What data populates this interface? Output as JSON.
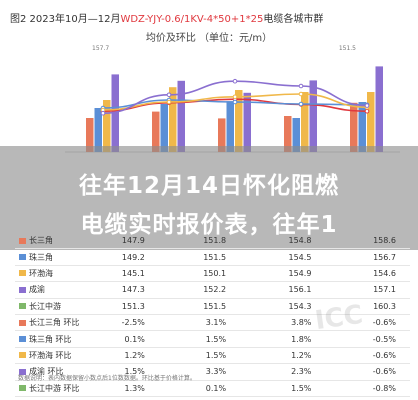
{
  "header": {
    "title_prefix": "图2 2023年10月—12月",
    "title_red": "WDZ-YJY-0.6/1KV-4*50+1*25",
    "title_suffix": "电缆各城市群",
    "subtitle": "均价及环比 （单位：元/m）"
  },
  "chart_labels": {
    "top_left": "157.7",
    "top_right": "151.5"
  },
  "chart_data": {
    "type": "bar",
    "categories": [
      "长三角",
      "珠三角",
      "环渤海",
      "成渝",
      "长江中游"
    ],
    "series": [
      {
        "name": "",
        "values": [
          147.5,
          149.1,
          147.4,
          148.0,
          151.3
        ],
        "color": "#e8795a"
      },
      {
        "name": "",
        "values": [
          150.0,
          151.0,
          151.7,
          147.5,
          151.5
        ],
        "color": "#5b8fd6"
      },
      {
        "name": "",
        "values": [
          152.0,
          155.2,
          154.5,
          154.0,
          154.0
        ],
        "color": "#f0b84a"
      },
      {
        "name": "",
        "values": [
          158.4,
          156.8,
          153.8,
          156.9,
          160.4
        ],
        "color": "#8a6fd0"
      }
    ],
    "lines": [
      {
        "values": [
          149.2,
          151.3,
          152.2,
          150.9,
          149.2
        ],
        "color": "#e0383e"
      },
      {
        "values": [
          150.0,
          152.0,
          151.5,
          151.0,
          150.8
        ],
        "color": "#5b8fd6"
      },
      {
        "values": [
          149.5,
          151.5,
          152.8,
          153.5,
          150.2
        ],
        "color": "#f0b84a"
      },
      {
        "values": [
          148.7,
          153.3,
          156.7,
          155.5,
          150.6
        ],
        "color": "#8a6fd0"
      }
    ],
    "ylim": [
      139,
      162
    ]
  },
  "banner": {
    "line1": "往年12月14日怀化阻燃",
    "line2": "电缆实时报价表，往年1"
  },
  "table": {
    "rows": [
      {
        "name": "长三角",
        "color": "#e8795a",
        "c1": "147.9",
        "c2": "151.8",
        "c3": "154.8",
        "c4": "158.6"
      },
      {
        "name": "珠三角",
        "color": "#5b8fd6",
        "c1": "149.2",
        "c2": "151.5",
        "c3": "154.5",
        "c4": "156.7"
      },
      {
        "name": "环渤海",
        "color": "#f0b84a",
        "c1": "145.1",
        "c2": "150.1",
        "c3": "154.9",
        "c4": "154.6"
      },
      {
        "name": "成渝",
        "color": "#8a6fd0",
        "c1": "147.3",
        "c2": "152.2",
        "c3": "156.1",
        "c4": "157.1"
      },
      {
        "name": "长江中游",
        "color": "#7fb86a",
        "c1": "151.3",
        "c2": "151.5",
        "c3": "154.3",
        "c4": "160.3"
      },
      {
        "name": "长江三角 环比",
        "color": "#e8795a",
        "c1": "-2.5%",
        "c2": "3.1%",
        "c3": "3.8%",
        "c4": "-0.6%"
      },
      {
        "name": "珠三角 环比",
        "color": "#5b8fd6",
        "c1": "0.1%",
        "c2": "1.5%",
        "c3": "1.8%",
        "c4": "-0.5%"
      },
      {
        "name": "环渤海 环比",
        "color": "#f0b84a",
        "c1": "1.2%",
        "c2": "1.5%",
        "c3": "1.2%",
        "c4": "-0.6%"
      },
      {
        "name": "成渝 环比",
        "color": "#8a6fd0",
        "c1": "1.5%",
        "c2": "3.3%",
        "c3": "2.3%",
        "c4": "-0.6%"
      },
      {
        "name": "长江中游 环比",
        "color": "#7fb86a",
        "c1": "1.3%",
        "c2": "0.1%",
        "c3": "1.5%",
        "c4": "-0.8%"
      }
    ]
  },
  "footer": "数据说明：表内数据保留小数点后1位数数据。环比基于价格计算。"
}
